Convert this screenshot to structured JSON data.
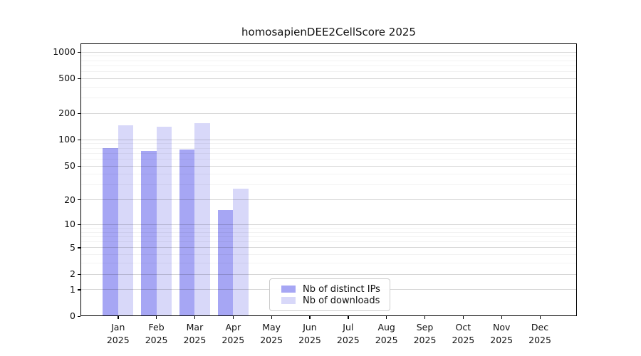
{
  "chart_data": {
    "type": "bar",
    "title": "homosapienDEE2CellScore 2025",
    "categories": [
      "Jan 2025",
      "Feb 2025",
      "Mar 2025",
      "Apr 2025",
      "May 2025",
      "Jun 2025",
      "Jul 2025",
      "Aug 2025",
      "Sep 2025",
      "Oct 2025",
      "Nov 2025",
      "Dec 2025"
    ],
    "series": [
      {
        "name": "Nb of distinct IPs",
        "color": "#a6a6f4",
        "values": [
          81,
          75,
          77,
          15,
          0,
          0,
          0,
          0,
          0,
          0,
          0,
          0
        ]
      },
      {
        "name": "Nb of downloads",
        "color": "#d8d8f9",
        "values": [
          146,
          141,
          156,
          27,
          0,
          0,
          0,
          0,
          0,
          0,
          0,
          0
        ]
      }
    ],
    "yticks": [
      0,
      1,
      2,
      5,
      10,
      20,
      50,
      100,
      200,
      500,
      1000
    ],
    "yticks_minor": [
      3,
      4,
      6,
      7,
      8,
      9,
      30,
      40,
      60,
      70,
      80,
      90,
      300,
      400,
      600,
      700,
      800,
      900
    ],
    "y_scale": "log10(value+1)",
    "ylim": [
      0,
      1259
    ],
    "grid": true,
    "legend": {
      "position": "bottom-center",
      "entries": [
        "Nb of distinct IPs",
        "Nb of downloads"
      ]
    }
  }
}
